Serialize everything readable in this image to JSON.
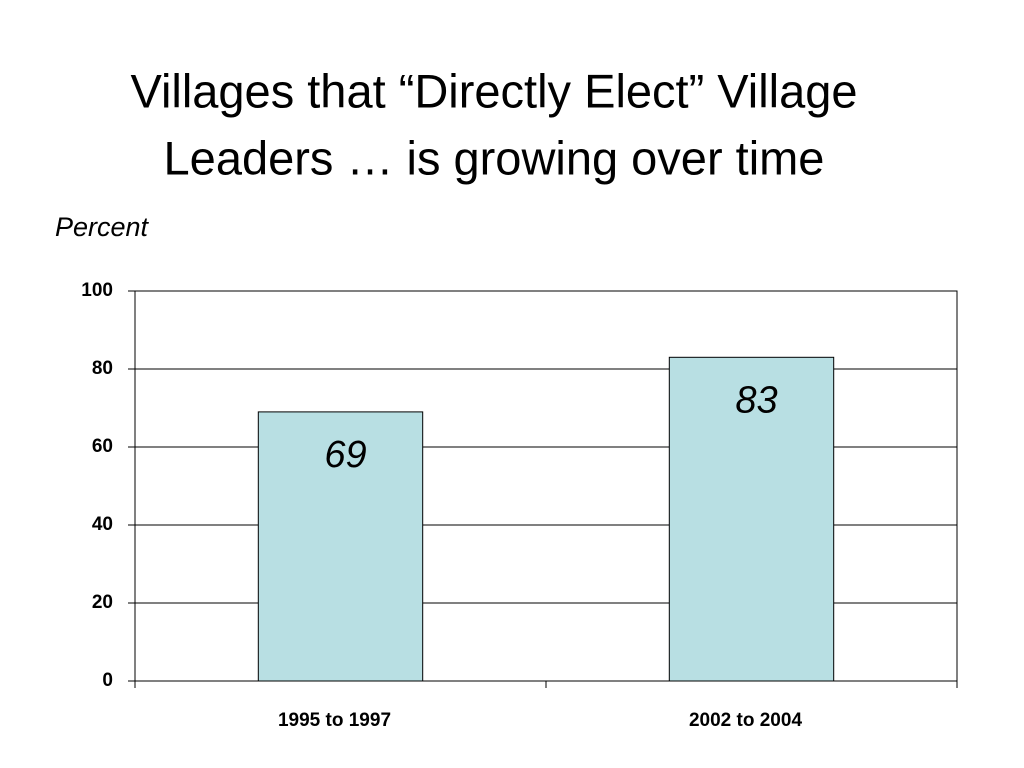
{
  "chart_data": {
    "type": "bar",
    "title": [
      "Villages that “Directly Elect” Village",
      "Leaders … is growing over time"
    ],
    "subtitle": "Percent",
    "categories": [
      "1995 to 1997",
      "2002 to 2004"
    ],
    "values": [
      69,
      83
    ],
    "color": "#b8dfe3",
    "ylim": [
      0,
      100
    ],
    "yticks": [
      0,
      20,
      40,
      60,
      80,
      100
    ],
    "grid": true
  }
}
